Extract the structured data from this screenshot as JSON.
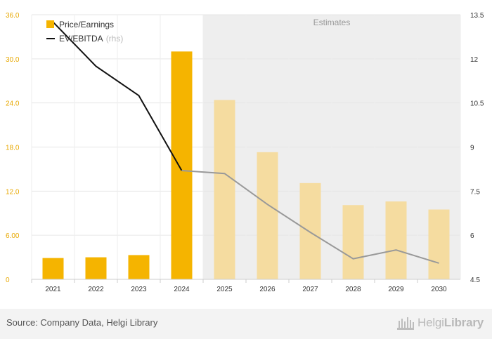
{
  "chart_data": {
    "type": "bar",
    "categories": [
      "2021",
      "2022",
      "2023",
      "2024",
      "2025",
      "2026",
      "2027",
      "2028",
      "2029",
      "2030"
    ],
    "estimates_from": "2025",
    "estimates_label": "Estimates",
    "series": [
      {
        "name": "Price/Earnings",
        "type": "bar",
        "axis": "left",
        "color": "#f5b400",
        "estimate_color": "#f5dca0",
        "values": [
          2.9,
          3.0,
          3.3,
          31.0,
          24.4,
          17.3,
          13.1,
          10.1,
          10.6,
          9.5
        ]
      },
      {
        "name": "EV/EBITDA",
        "name_suffix": "(rhs)",
        "type": "line",
        "axis": "right",
        "color": "#111111",
        "estimate_color": "#999999",
        "values": [
          13.25,
          11.75,
          10.75,
          8.2,
          8.1,
          7.05,
          6.1,
          5.2,
          5.5,
          5.05
        ]
      }
    ],
    "y_left": {
      "ylim": [
        0,
        36
      ],
      "ticks": [
        "0",
        "6.00",
        "12.0",
        "18.0",
        "24.0",
        "30.0",
        "36.0"
      ],
      "tick_color": "#e8a800"
    },
    "y_right": {
      "ylim": [
        4.5,
        13.5
      ],
      "ticks": [
        "4.5",
        "6",
        "7.5",
        "9",
        "10.5",
        "12",
        "13.5"
      ]
    },
    "grid": true,
    "legend_position": "top-left"
  },
  "footer": {
    "source": "Source: Company Data, Helgi Library",
    "logo_text_light": "Helgi",
    "logo_text_bold": "Library"
  }
}
